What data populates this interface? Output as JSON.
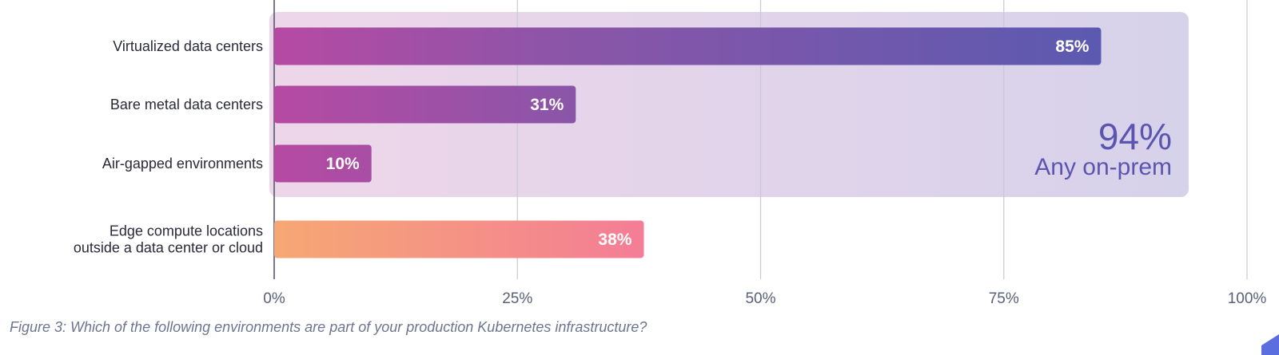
{
  "caption": "Figure 3: Which of the following environments are part of your production Kubernetes infrastructure?",
  "chart_data": {
    "type": "bar",
    "orientation": "horizontal",
    "categories": [
      [
        "Virtualized data centers"
      ],
      [
        "Bare metal data centers"
      ],
      [
        "Air-gapped environments"
      ],
      [
        "Edge compute locations",
        "outside a data center or cloud"
      ]
    ],
    "values": [
      85,
      31,
      10,
      38
    ],
    "value_labels": [
      "85%",
      "31%",
      "10%",
      "38%"
    ],
    "xlim": [
      0,
      100
    ],
    "x_ticks": [
      0,
      25,
      50,
      75,
      100
    ],
    "x_tick_labels": [
      "0%",
      "25%",
      "50%",
      "75%",
      "100%"
    ],
    "grid": true,
    "group_highlight": {
      "categories": [
        "Virtualized data centers",
        "Bare metal data centers",
        "Air-gapped environments"
      ],
      "value": 94,
      "value_label": "94%",
      "label": "Any on-prem"
    },
    "colors": {
      "highlight_start": "#eed6ea",
      "highlight_end": "#d6d2ea",
      "on_prem_bar_start": "#b64aa3",
      "on_prem_bar_end": "#5b5ab0",
      "edge_bar_start": "#f6a874",
      "edge_bar_end": "#f47d96",
      "callout": "#5b55b0"
    }
  }
}
